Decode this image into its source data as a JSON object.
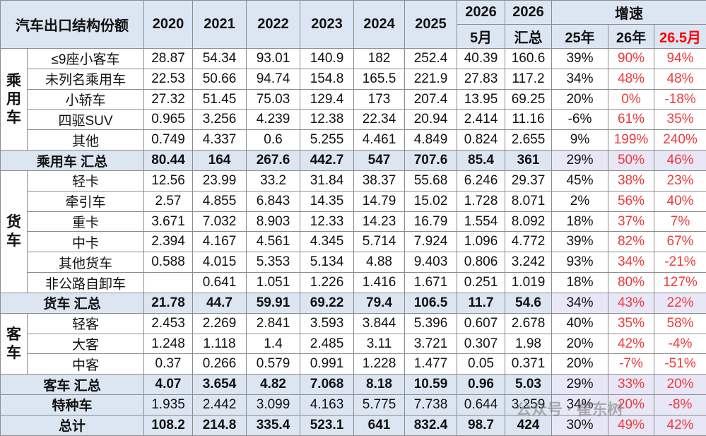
{
  "header": {
    "title": "汽车出口结构份额",
    "years": [
      "2020",
      "2021",
      "2022",
      "2023",
      "2024",
      "2025"
    ],
    "col2026a": [
      "2026",
      "5月"
    ],
    "col2026b": [
      "2026",
      "汇总"
    ],
    "growth": "增速",
    "growth_cols": [
      "25年",
      "26年",
      "26.5月"
    ]
  },
  "groups": [
    {
      "label": "乘用车",
      "rows": [
        [
          "≤9座小客车",
          28.87,
          54.34,
          93.01,
          140.9,
          182,
          252.4,
          40.39,
          160.6,
          "39%",
          "90%",
          "94%"
        ],
        [
          "未列名乘用车",
          22.53,
          50.66,
          94.74,
          154.8,
          165.5,
          221.9,
          27.83,
          117.2,
          "34%",
          "48%",
          "48%"
        ],
        [
          "小轿车",
          27.32,
          51.45,
          75.03,
          129.4,
          173,
          207.4,
          13.95,
          69.25,
          "20%",
          "0%",
          "-18%"
        ],
        [
          "四驱SUV",
          0.965,
          3.256,
          4.239,
          12.38,
          22.34,
          20.94,
          2.414,
          11.16,
          "-6%",
          "61%",
          "35%"
        ],
        [
          "其他",
          0.749,
          4.337,
          0.6,
          5.255,
          4.461,
          4.849,
          0.824,
          2.655,
          "9%",
          "199%",
          "240%"
        ]
      ],
      "subtotal": [
        "乘用车 汇总",
        80.44,
        164,
        267.6,
        442.7,
        547,
        707.6,
        85.4,
        361,
        "29%",
        "50%",
        "46%"
      ]
    },
    {
      "label": "货车",
      "rows": [
        [
          "轻卡",
          12.56,
          23.99,
          33.2,
          31.84,
          38.37,
          55.68,
          6.246,
          29.37,
          "45%",
          "38%",
          "23%"
        ],
        [
          "牵引车",
          2.57,
          4.855,
          6.843,
          14.35,
          14.79,
          15.02,
          1.728,
          8.071,
          "2%",
          "56%",
          "40%"
        ],
        [
          "重卡",
          3.671,
          7.032,
          8.903,
          12.33,
          14.23,
          16.79,
          1.554,
          8.092,
          "18%",
          "37%",
          "7%"
        ],
        [
          "中卡",
          2.394,
          4.167,
          4.561,
          4.345,
          5.714,
          7.924,
          1.096,
          4.772,
          "39%",
          "82%",
          "67%"
        ],
        [
          "其他货车",
          0.588,
          4.015,
          5.353,
          5.134,
          4.88,
          9.403,
          0.806,
          3.242,
          "93%",
          "34%",
          "-21%"
        ],
        [
          "非公路自卸车",
          null,
          0.641,
          1.051,
          1.226,
          1.416,
          1.671,
          0.251,
          1.019,
          "18%",
          "80%",
          "127%"
        ]
      ],
      "subtotal": [
        "货车 汇总",
        21.78,
        44.7,
        59.91,
        69.22,
        79.4,
        106.5,
        11.7,
        54.6,
        "34%",
        "43%",
        "22%"
      ]
    },
    {
      "label": "客车",
      "rows": [
        [
          "轻客",
          2.453,
          2.269,
          2.841,
          3.593,
          3.844,
          5.396,
          0.607,
          2.678,
          "40%",
          "35%",
          "58%"
        ],
        [
          "大客",
          1.248,
          1.118,
          1.4,
          2.485,
          3.11,
          3.721,
          0.307,
          1.98,
          "20%",
          "42%",
          "-4%"
        ],
        [
          "中客",
          0.37,
          0.266,
          0.579,
          0.991,
          1.228,
          1.477,
          0.05,
          0.371,
          "20%",
          "-7%",
          "-51%"
        ]
      ],
      "subtotal": [
        "客车 汇总",
        4.07,
        3.654,
        4.82,
        7.068,
        8.18,
        10.59,
        0.96,
        5.03,
        "29%",
        "33%",
        "20%"
      ]
    }
  ],
  "special": [
    "特种车",
    1.935,
    2.442,
    3.099,
    4.163,
    5.775,
    7.738,
    0.644,
    3.259,
    "34%",
    "20%",
    "-8%"
  ],
  "total": [
    "总计",
    108.2,
    214.8,
    335.4,
    523.1,
    641,
    832.4,
    98.7,
    424,
    "30%",
    "49%",
    "42%"
  ],
  "watermark": "公众号 · 崔东树"
}
